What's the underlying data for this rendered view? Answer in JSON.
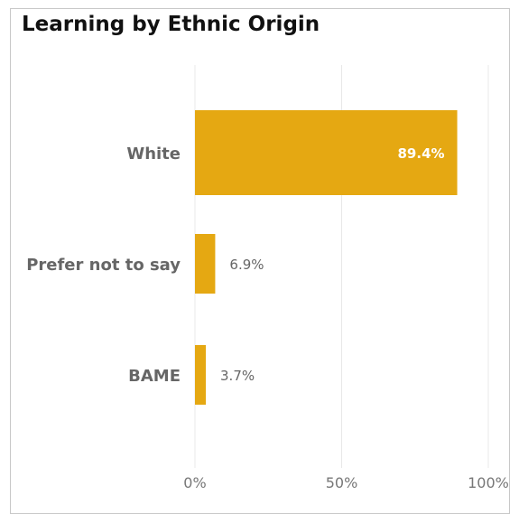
{
  "chart_data": {
    "type": "bar",
    "orientation": "horizontal",
    "title": "Learning by Ethnic Origin",
    "categories": [
      "White",
      "Prefer not to say",
      "BAME"
    ],
    "values": [
      89.4,
      6.9,
      3.7
    ],
    "data_labels": [
      "89.4%",
      "6.9%",
      "3.7%"
    ],
    "xlim": [
      0,
      100
    ],
    "ticks": [
      0,
      50,
      100
    ],
    "tick_labels": [
      "0%",
      "50%",
      "100%"
    ],
    "grid": true,
    "bar_color": "#E5A812",
    "grid_color": "#e8e8e8"
  }
}
